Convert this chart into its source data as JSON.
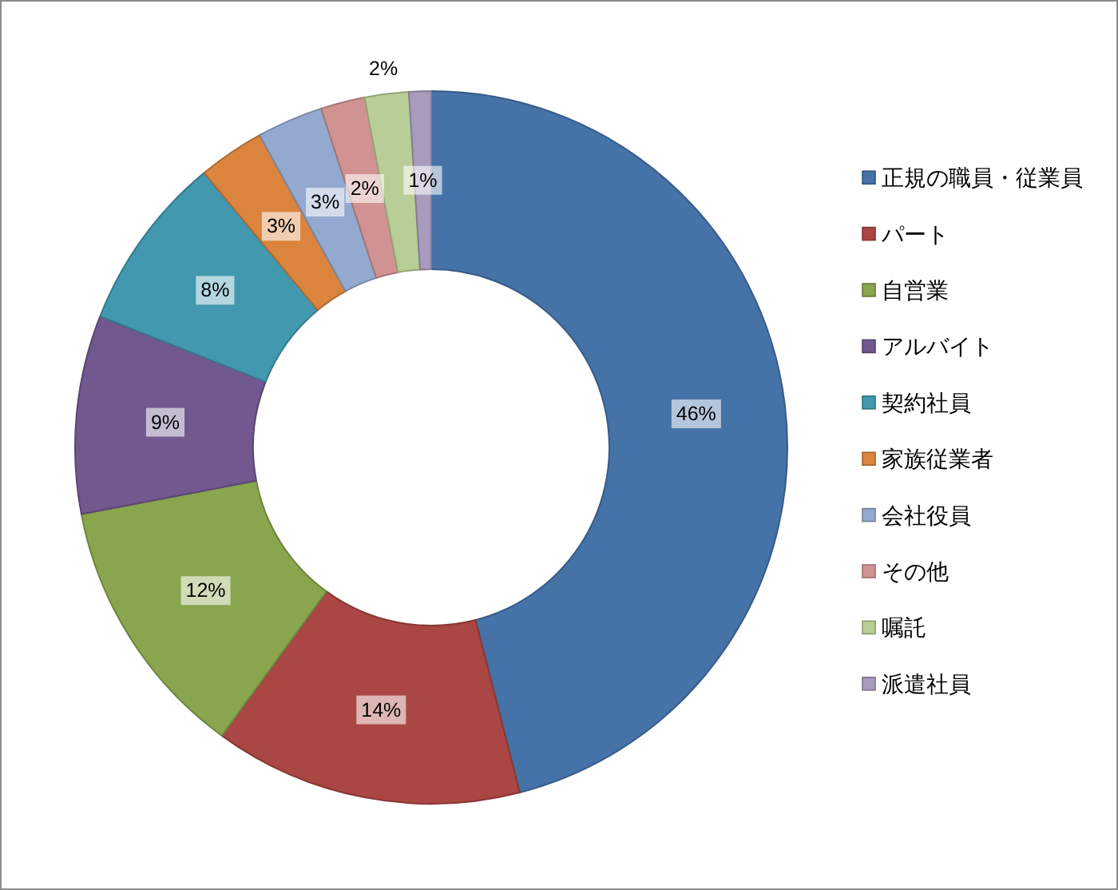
{
  "chart_data": {
    "type": "donut",
    "categories": [
      "正規の職員・従業員",
      "パート",
      "自営業",
      "アルバイト",
      "契約社員",
      "家族従業者",
      "会社役員",
      "その他",
      "嘱託",
      "派遣社員"
    ],
    "values": [
      46,
      14,
      12,
      9,
      8,
      3,
      3,
      2,
      2,
      1
    ],
    "colors": [
      "#4572a7",
      "#aa4643",
      "#89a54e",
      "#71588f",
      "#4198af",
      "#db843d",
      "#93a9cf",
      "#d19392",
      "#b9cd96",
      "#a99bbd"
    ],
    "value_labels": [
      "46%",
      "14%",
      "12%",
      "9%",
      "8%",
      "3%",
      "3%",
      "2%",
      "2%",
      "1%"
    ],
    "legend": "right"
  }
}
